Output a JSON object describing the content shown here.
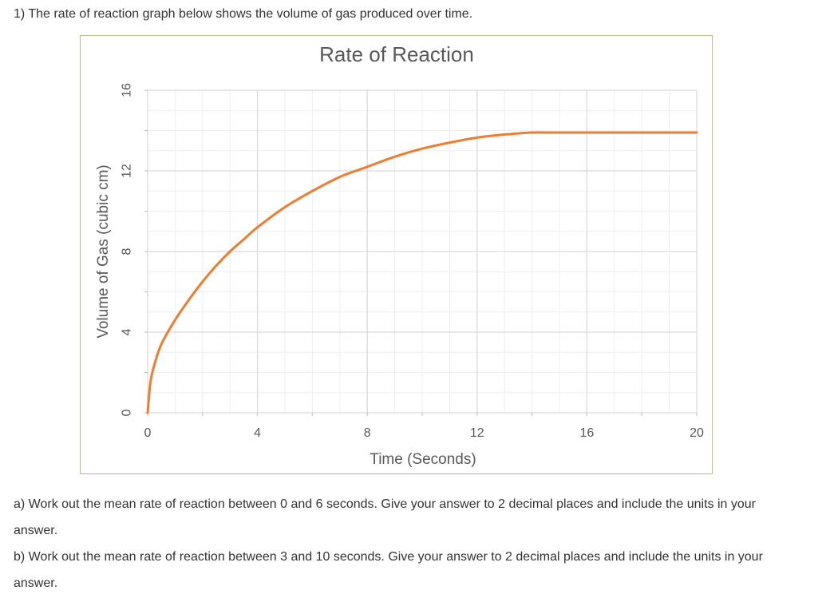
{
  "intro_text": "1) The rate of reaction graph below shows the volume of gas produced over time.",
  "questions": {
    "a": "a) Work out the mean rate of reaction between 0 and 6 seconds. Give your answer to 2 decimal places and include the units in your answer.",
    "b": "b) Work out the mean rate of reaction between 3 and 10 seconds. Give your answer to 2 decimal places and include the units in your answer."
  },
  "colors": {
    "series": "#ed7d31",
    "grid_major": "#d9d9d9",
    "grid_minor": "#efefef",
    "border": "#bfb78a",
    "text": "#595959"
  },
  "chart_data": {
    "type": "line",
    "title": "Rate of Reaction",
    "xlabel": "Time (Seconds)",
    "ylabel": "Volume of Gas (cubic cm)",
    "xlim": [
      0,
      20
    ],
    "ylim": [
      0,
      16
    ],
    "xticks": [
      0,
      4,
      8,
      12,
      16,
      20
    ],
    "yticks": [
      0,
      4,
      8,
      12,
      16
    ],
    "grid": true,
    "series": [
      {
        "name": "Volume of gas",
        "x": [
          0,
          0.1,
          0.25,
          0.5,
          1,
          1.5,
          2,
          2.5,
          3,
          3.5,
          4,
          5,
          6,
          7,
          8,
          9,
          10,
          11,
          12,
          13,
          14,
          15,
          20
        ],
        "y": [
          0,
          1.5,
          2.4,
          3.4,
          4.6,
          5.6,
          6.5,
          7.3,
          8.0,
          8.6,
          9.2,
          10.2,
          11.0,
          11.7,
          12.2,
          12.7,
          13.1,
          13.4,
          13.65,
          13.8,
          13.9,
          13.9,
          13.9
        ]
      }
    ]
  }
}
